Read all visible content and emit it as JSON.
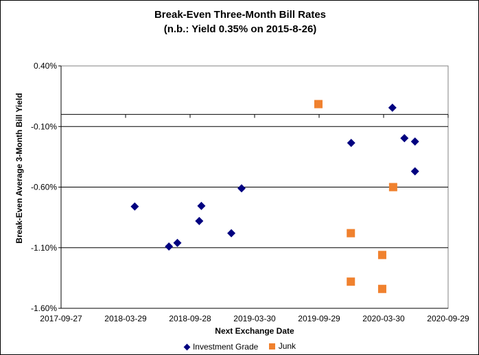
{
  "chart_data": {
    "type": "scatter",
    "title": "Break-Even Three-Month Bill Rates",
    "subtitle": "(n.b.: Yield 0.35% on 2015-8-26)",
    "xlabel": "Next Exchange Date",
    "ylabel": "Break-Even Average 3-Month Bill Yield",
    "x_ticks": [
      "2017-09-27",
      "2018-03-29",
      "2018-09-28",
      "2019-03-30",
      "2019-09-29",
      "2020-03-30",
      "2020-09-29"
    ],
    "y_ticks": [
      "0.40%",
      "-0.10%",
      "-0.60%",
      "-1.10%",
      "-1.60%"
    ],
    "y_tick_values": [
      0.4,
      -0.1,
      -0.6,
      -1.1,
      -1.6
    ],
    "xlim": [
      "2017-09-27",
      "2020-09-29"
    ],
    "ylim": [
      -1.6,
      0.4
    ],
    "grid": "horizontal",
    "legend_position": "bottom",
    "series": [
      {
        "name": "Investment Grade",
        "marker": "diamond",
        "color": "#000080",
        "points": [
          {
            "x": "2018-04-24",
            "y": -0.76
          },
          {
            "x": "2018-07-30",
            "y": -1.09
          },
          {
            "x": "2018-08-23",
            "y": -1.06
          },
          {
            "x": "2018-10-24",
            "y": -0.88
          },
          {
            "x": "2018-10-30",
            "y": -0.755
          },
          {
            "x": "2019-01-23",
            "y": -0.98
          },
          {
            "x": "2019-02-21",
            "y": -0.61
          },
          {
            "x": "2019-12-29",
            "y": -0.235
          },
          {
            "x": "2020-04-24",
            "y": 0.055
          },
          {
            "x": "2020-05-28",
            "y": -0.196
          },
          {
            "x": "2020-06-27",
            "y": -0.224
          },
          {
            "x": "2020-06-27",
            "y": -0.47
          }
        ]
      },
      {
        "name": "Junk",
        "marker": "square",
        "color": "#f0812e",
        "points": [
          {
            "x": "2019-09-27",
            "y": 0.085
          },
          {
            "x": "2019-12-28",
            "y": -0.98
          },
          {
            "x": "2019-12-28",
            "y": -1.38
          },
          {
            "x": "2020-03-26",
            "y": -1.16
          },
          {
            "x": "2020-03-26",
            "y": -1.44
          },
          {
            "x": "2020-04-26",
            "y": -0.6
          }
        ]
      }
    ]
  }
}
